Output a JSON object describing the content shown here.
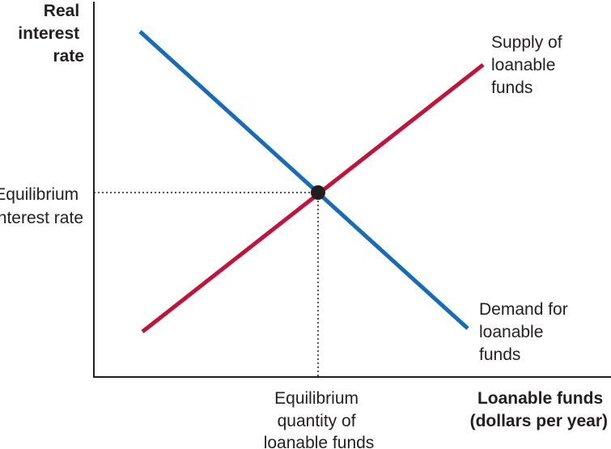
{
  "y_axis_label": [
    "Real",
    "interest",
    "rate"
  ],
  "x_axis_label": [
    "Loanable funds",
    "(dollars per year)"
  ],
  "supply_label": [
    "Supply of",
    "loanable",
    "funds"
  ],
  "demand_label": [
    "Demand for",
    "loanable",
    "funds"
  ],
  "equilibrium_rate_label": [
    "Equilibrium",
    "interest rate"
  ],
  "equilibrium_quantity_label": [
    "Equilibrium",
    "quantity of",
    "loanable funds"
  ],
  "colors": {
    "supply": "#c0143c",
    "demand": "#1a6bb5",
    "axis": "#231f20",
    "equilibrium_point": "#231f20"
  }
}
